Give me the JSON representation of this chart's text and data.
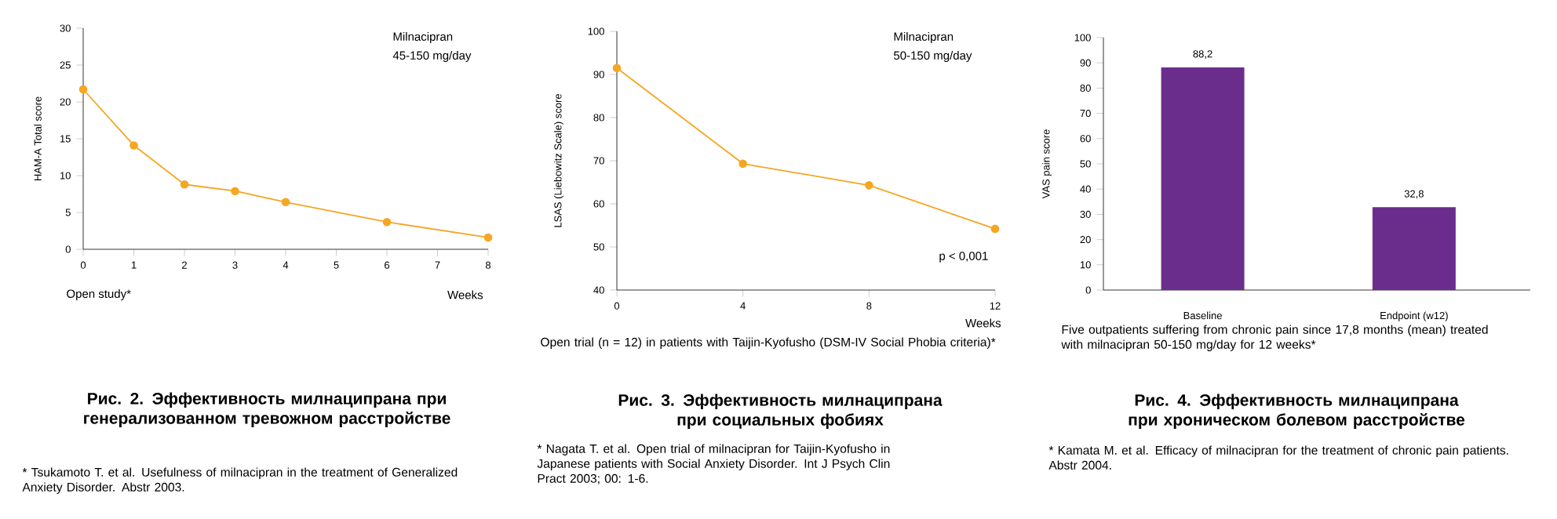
{
  "chart_data": [
    {
      "type": "line",
      "title": "Рис. 2. Эффективность милнаципрана при генерализованном тревожном расстройстве",
      "ylabel": "HAM-A Total score",
      "xlabel": "Weeks",
      "x": [
        0,
        1,
        2,
        3,
        4,
        6,
        8
      ],
      "series": [
        {
          "color": "#f5a623",
          "values": [
            21.7,
            14.1,
            8.8,
            7.9,
            6.4,
            3.7,
            1.6
          ]
        }
      ],
      "xlim": [
        0,
        8
      ],
      "xticks": [
        0,
        1,
        2,
        3,
        4,
        5,
        6,
        7,
        8
      ],
      "ylim": [
        0,
        30
      ],
      "yticks": [
        0,
        5,
        10,
        15,
        20,
        25,
        30
      ],
      "marker": "circle",
      "annotations": [
        "Milnacipran",
        "45-150 mg/day",
        "Open study*",
        "* Tsukamoto T. et al. Usefulness of milnacipran in the treatment of Generalized Anxiety Disorder. Abstr 2003."
      ]
    },
    {
      "type": "line",
      "title": "Рис. 3. Эффективность милнаципрана при социальных фобиях",
      "ylabel": "LSAS  (Liebowitz Scale) score",
      "xlabel": "Weeks",
      "x": [
        0,
        4,
        8,
        12
      ],
      "series": [
        {
          "color": "#f5a623",
          "values": [
            91.5,
            69.3,
            64.3,
            54.2
          ]
        }
      ],
      "xlim": [
        0,
        12
      ],
      "xticks": [
        0,
        4,
        8,
        12
      ],
      "ylim": [
        40,
        100
      ],
      "yticks": [
        40,
        50,
        60,
        70,
        80,
        90,
        100
      ],
      "marker": "circle",
      "annotations": [
        "Milnacipran",
        "50-150 mg/day",
        "p < 0,001",
        "Open trial (n = 12) in patients with Taijin-Kyofusho (DSM-IV Social Phobia criteria)*",
        "* Nagata T. et al. Open trial of milnacipran for Taijin-Kyofusho in Japanese patients with Social Anxiety Disorder. Int J Psych Clin Pract 2003; 00: 1-6."
      ]
    },
    {
      "type": "bar",
      "title": "Рис. 4. Эффективность милнаципрана при хроническом болевом расстройстве",
      "ylabel": "VAS pain score",
      "categories": [
        "Baseline",
        "Endpoint (w12)"
      ],
      "values": [
        88.2,
        32.8
      ],
      "value_labels": [
        "88,2",
        "32,8"
      ],
      "color": "#6b2d8c",
      "ylim": [
        0,
        100
      ],
      "yticks": [
        0,
        10,
        20,
        30,
        40,
        50,
        60,
        70,
        80,
        90,
        100
      ],
      "annotations": [
        "Five outpatients suffering from chronic pain since 17,8 months (mean) treated with milnacipran 50-150 mg/day for 12 weeks*",
        "* Kamata M. et al. Efficacy of milnacipran for the treatment of chronic pain patients. Abstr 2004."
      ]
    }
  ]
}
